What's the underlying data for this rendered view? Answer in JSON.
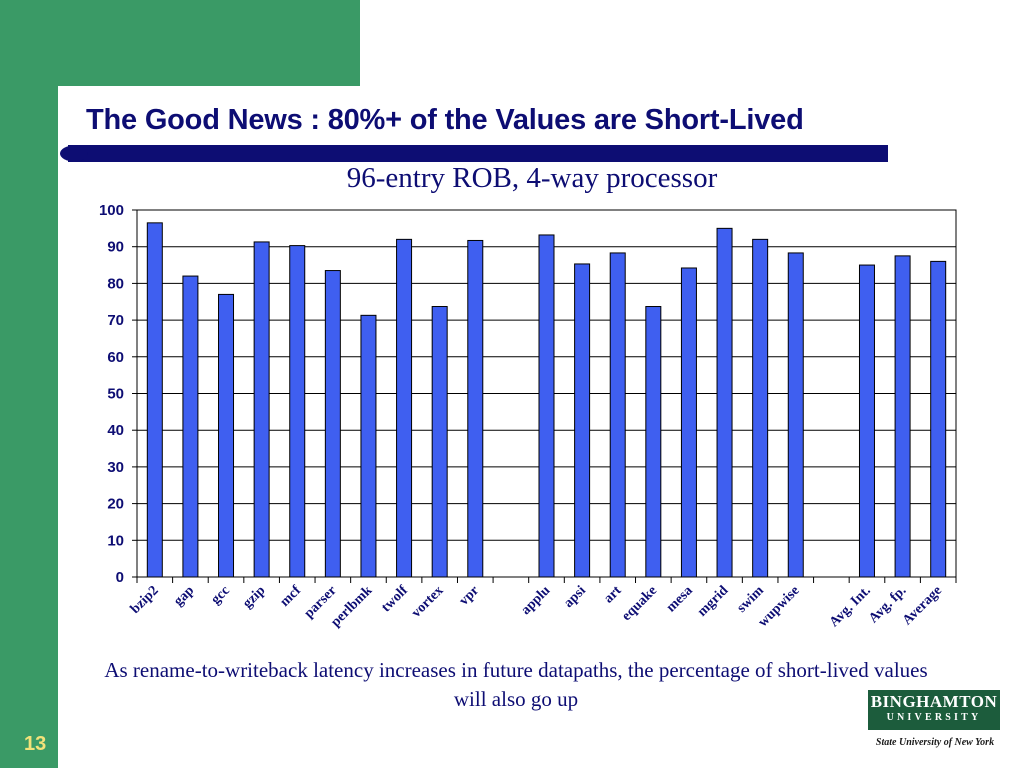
{
  "slide": {
    "title": "The Good News : 80%+ of the Values are Short-Lived",
    "caption": "As rename-to-writeback latency increases in future datapaths, the percentage of short-lived values will also go up",
    "slide_number": "13",
    "logo": {
      "name_line1": "BINGHAMTON",
      "name_line2": "UNIVERSITY",
      "subtitle": "State University of New York"
    },
    "colors": {
      "accent_green": "#3a9a66",
      "title_navy": "#0d0d73",
      "bar_blue": "#3f5ff0",
      "number_yellow": "#f2e27a"
    }
  },
  "chart_data": {
    "type": "bar",
    "title": "96-entry ROB, 4-way processor",
    "xlabel": "",
    "ylabel": "",
    "ylim": [
      0,
      100
    ],
    "yticks": [
      0,
      10,
      20,
      30,
      40,
      50,
      60,
      70,
      80,
      90,
      100
    ],
    "grid": true,
    "legend": "none",
    "categories": [
      "bzip2",
      "gap",
      "gcc",
      "gzip",
      "mcf",
      "parser",
      "perlbmk",
      "twolf",
      "vortex",
      "vpr",
      "",
      "applu",
      "apsi",
      "art",
      "equake",
      "mesa",
      "mgrid",
      "swim",
      "wupwise",
      "",
      "Avg. Int.",
      "Avg. fp.",
      "Average"
    ],
    "values": [
      96.5,
      82,
      77,
      91.3,
      90.3,
      83.5,
      71.3,
      92,
      73.7,
      91.7,
      null,
      93.2,
      85.3,
      88.3,
      73.7,
      84.2,
      95,
      92,
      88.3,
      null,
      85,
      87.5,
      86
    ]
  }
}
